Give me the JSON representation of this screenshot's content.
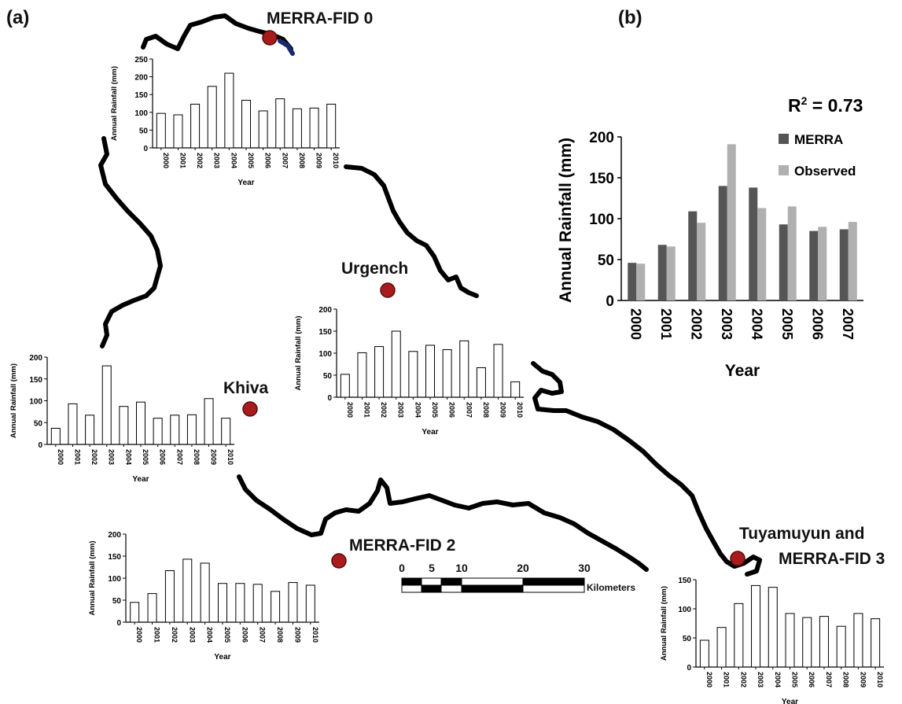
{
  "panel_a_label": "(a)",
  "panel_b_label": "(b)",
  "stations": [
    {
      "name": "MERRA-FID 0"
    },
    {
      "name": "Urgench"
    },
    {
      "name": "Khiva"
    },
    {
      "name": "MERRA-FID 2"
    },
    {
      "name": "Tuyamuyun and",
      "name_line2": "MERRA-FID 3"
    }
  ],
  "scale_bar": {
    "ticks": [
      "0",
      "5",
      "10",
      "20",
      "30"
    ],
    "unit": "Kilometers"
  },
  "chart_data": [
    {
      "id": "merra-fid-0",
      "type": "bar",
      "categories": [
        "2000",
        "2001",
        "2002",
        "2003",
        "2004",
        "2005",
        "2006",
        "2007",
        "2008",
        "2009",
        "2010"
      ],
      "values": [
        97,
        93,
        123,
        173,
        210,
        134,
        104,
        138,
        110,
        112,
        123
      ],
      "xlabel": "Year",
      "ylabel": "Annual Rainfall (mm)",
      "ylim": [
        0,
        250
      ],
      "yticks": [
        "0",
        "50",
        "100",
        "150",
        "200",
        "250"
      ]
    },
    {
      "id": "urgench",
      "type": "bar",
      "categories": [
        "2000",
        "2001",
        "2002",
        "2003",
        "2004",
        "2005",
        "2006",
        "2007",
        "2008",
        "2009",
        "2010"
      ],
      "values": [
        52,
        101,
        115,
        150,
        104,
        118,
        108,
        128,
        67,
        120,
        35
      ],
      "xlabel": "Year",
      "ylabel": "Annual Rainfall (mm)",
      "ylim": [
        0,
        200
      ],
      "yticks": [
        "0",
        "50",
        "100",
        "150",
        "200"
      ]
    },
    {
      "id": "khiva",
      "type": "bar",
      "categories": [
        "2000",
        "2001",
        "2002",
        "2003",
        "2004",
        "2005",
        "2006",
        "2007",
        "2008",
        "2009",
        "2010"
      ],
      "values": [
        37,
        93,
        67,
        180,
        87,
        97,
        60,
        67,
        68,
        105,
        60
      ],
      "xlabel": "Year",
      "ylabel": "Annual Rainfall (mm)",
      "ylim": [
        0,
        200
      ],
      "yticks": [
        "0",
        "50",
        "100",
        "150",
        "200"
      ]
    },
    {
      "id": "merra-fid-2",
      "type": "bar",
      "categories": [
        "2000",
        "2001",
        "2002",
        "2003",
        "2004",
        "2005",
        "2006",
        "2007",
        "2008",
        "2009",
        "2010"
      ],
      "values": [
        45,
        65,
        117,
        143,
        134,
        88,
        88,
        86,
        70,
        90,
        84
      ],
      "xlabel": "Year",
      "ylabel": "Annual Rainfall (mm)",
      "ylim": [
        0,
        200
      ],
      "yticks": [
        "0",
        "50",
        "100",
        "150",
        "200"
      ]
    },
    {
      "id": "merra-fid-3",
      "type": "bar",
      "categories": [
        "2000",
        "2001",
        "2002",
        "2003",
        "2004",
        "2005",
        "2006",
        "2007",
        "2008",
        "2009",
        "2010"
      ],
      "values": [
        46,
        68,
        109,
        140,
        137,
        92,
        85,
        87,
        70,
        92,
        83
      ],
      "xlabel": "Year",
      "ylabel": "Annual Rainfall (mm)",
      "ylim": [
        0,
        150
      ],
      "yticks": [
        "0",
        "50",
        "100",
        "150"
      ]
    },
    {
      "id": "comparison",
      "type": "bar",
      "categories": [
        "2000",
        "2001",
        "2002",
        "2003",
        "2004",
        "2005",
        "2006",
        "2007"
      ],
      "series": [
        {
          "name": "MERRA",
          "values": [
            46,
            68,
            109,
            140,
            138,
            93,
            85,
            87
          ],
          "color": "#555555"
        },
        {
          "name": "Observed",
          "values": [
            45,
            66,
            95,
            191,
            113,
            115,
            90,
            96
          ],
          "color": "#b0b0b0"
        }
      ],
      "xlabel": "Year",
      "ylabel": "Annual Rainfall (mm)",
      "ylim": [
        0,
        200
      ],
      "yticks": [
        "0",
        "50",
        "100",
        "150",
        "200"
      ],
      "annotation_base": "R",
      "annotation_sup": "2",
      "annotation_rest": " = 0.73",
      "legend": "top-right"
    }
  ]
}
